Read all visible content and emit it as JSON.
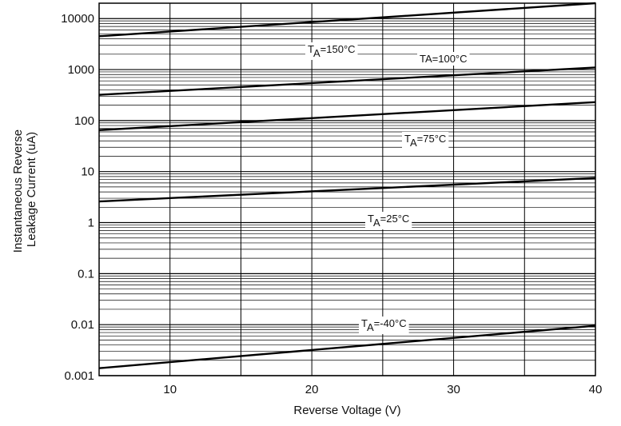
{
  "chart_data": {
    "type": "line",
    "title": "",
    "xlabel": "Reverse Voltage (V)",
    "ylabel_lines": [
      "Instantaneous Reverse",
      "Leakage Current (uA)"
    ],
    "xlim": [
      5,
      40
    ],
    "ylim": [
      0.001,
      20000
    ],
    "yscale": "log",
    "grid": true,
    "x_ticks": [
      {
        "value": 10,
        "label": "10"
      },
      {
        "value": 20,
        "label": "20"
      },
      {
        "value": 30,
        "label": "30"
      },
      {
        "value": 40,
        "label": "40"
      }
    ],
    "x_gridlines": [
      5,
      10,
      15,
      20,
      25,
      30,
      35,
      40
    ],
    "y_ticks": [
      {
        "value": 0.001,
        "label": "0.001"
      },
      {
        "value": 0.01,
        "label": "0.01"
      },
      {
        "value": 0.1,
        "label": "0.1"
      },
      {
        "value": 1,
        "label": "1"
      },
      {
        "value": 10,
        "label": "10"
      },
      {
        "value": 100,
        "label": "100"
      },
      {
        "value": 1000,
        "label": "1000"
      },
      {
        "value": 10000,
        "label": "10000"
      }
    ],
    "series": [
      {
        "id": "t150",
        "x": [
          5,
          40
        ],
        "y": [
          4500,
          20000
        ]
      },
      {
        "id": "t100",
        "x": [
          5,
          40
        ],
        "y": [
          320,
          1100
        ]
      },
      {
        "id": "t75",
        "x": [
          5,
          40
        ],
        "y": [
          65,
          230
        ]
      },
      {
        "id": "t25",
        "x": [
          5,
          40
        ],
        "y": [
          2.6,
          7.5
        ]
      },
      {
        "id": "tm40",
        "x": [
          5,
          40
        ],
        "y": [
          0.0014,
          0.0095
        ]
      }
    ],
    "curve_labels": [
      {
        "series": "t150",
        "main": "T",
        "sub": "A",
        "rest": "=150°C"
      },
      {
        "series": "t100",
        "text": "TA=100°C"
      },
      {
        "series": "t75",
        "main": "T",
        "sub": "A",
        "rest": "=75°C"
      },
      {
        "series": "t25",
        "main": "T",
        "sub": "A",
        "rest": "=25°C"
      },
      {
        "series": "tm40",
        "main": "T",
        "sub": "A",
        "rest": "=-40°C"
      }
    ]
  }
}
